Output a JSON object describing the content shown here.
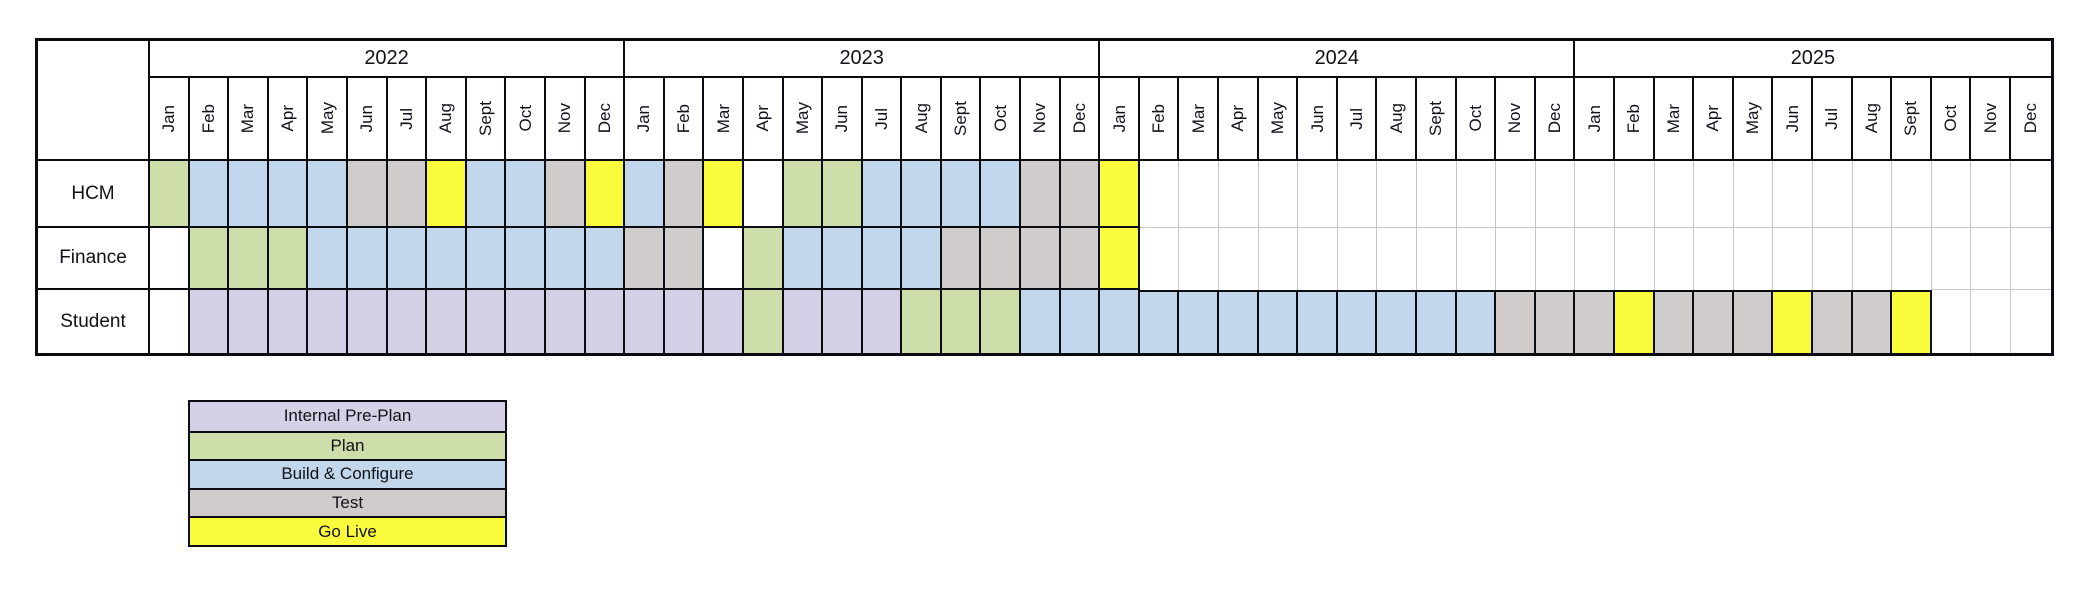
{
  "chart_data": {
    "type": "table",
    "years": [
      "2022",
      "2023",
      "2024",
      "2025"
    ],
    "months": [
      "Jan",
      "Feb",
      "Mar",
      "Apr",
      "May",
      "Jun",
      "Jul",
      "Aug",
      "Sept",
      "Oct",
      "Nov",
      "Dec"
    ],
    "phases": [
      {
        "code": "P",
        "label": "Internal Pre-Plan",
        "color": "#D5D0E6"
      },
      {
        "code": "G",
        "label": "Plan",
        "color": "#CEDEAB"
      },
      {
        "code": "B",
        "label": "Build & Configure",
        "color": "#C3D7EC"
      },
      {
        "code": "T",
        "label": "Test",
        "color": "#D0CCCC"
      },
      {
        "code": "Y",
        "label": "Go Live",
        "color": "#FBFB3D"
      }
    ],
    "cell_codes_note": "W = in-plan blank month, empty string = outside plan range",
    "rows": [
      {
        "label": "HCM",
        "cells": [
          "G",
          "B",
          "B",
          "B",
          "B",
          "T",
          "T",
          "Y",
          "B",
          "B",
          "T",
          "Y",
          "B",
          "T",
          "Y",
          "W",
          "G",
          "G",
          "B",
          "B",
          "B",
          "B",
          "T",
          "T",
          "Y",
          "",
          "",
          "",
          "",
          "",
          "",
          "",
          "",
          "",
          "",
          "",
          "",
          "",
          "",
          "",
          "",
          "",
          "",
          "",
          "",
          "",
          "",
          ""
        ]
      },
      {
        "label": "Finance",
        "cells": [
          "W",
          "G",
          "G",
          "G",
          "B",
          "B",
          "B",
          "B",
          "B",
          "B",
          "B",
          "B",
          "T",
          "T",
          "W",
          "G",
          "B",
          "B",
          "B",
          "B",
          "T",
          "T",
          "T",
          "T",
          "Y",
          "",
          "",
          "",
          "",
          "",
          "",
          "",
          "",
          "",
          "",
          "",
          "",
          "",
          "",
          "",
          "",
          "",
          "",
          "",
          "",
          "",
          "",
          ""
        ]
      },
      {
        "label": "Student",
        "cells": [
          "W",
          "P",
          "P",
          "P",
          "P",
          "P",
          "P",
          "P",
          "P",
          "P",
          "P",
          "P",
          "P",
          "P",
          "P",
          "G",
          "P",
          "P",
          "P",
          "G",
          "G",
          "G",
          "B",
          "B",
          "B",
          "B",
          "B",
          "B",
          "B",
          "B",
          "B",
          "B",
          "B",
          "B",
          "T",
          "T",
          "T",
          "Y",
          "T",
          "T",
          "T",
          "Y",
          "T",
          "T",
          "Y",
          "",
          "",
          ""
        ]
      }
    ],
    "layout": {
      "grid_line_color": "#c8c8c8",
      "border_color": "#0b0b12",
      "legend_position": "bottom-left"
    }
  }
}
